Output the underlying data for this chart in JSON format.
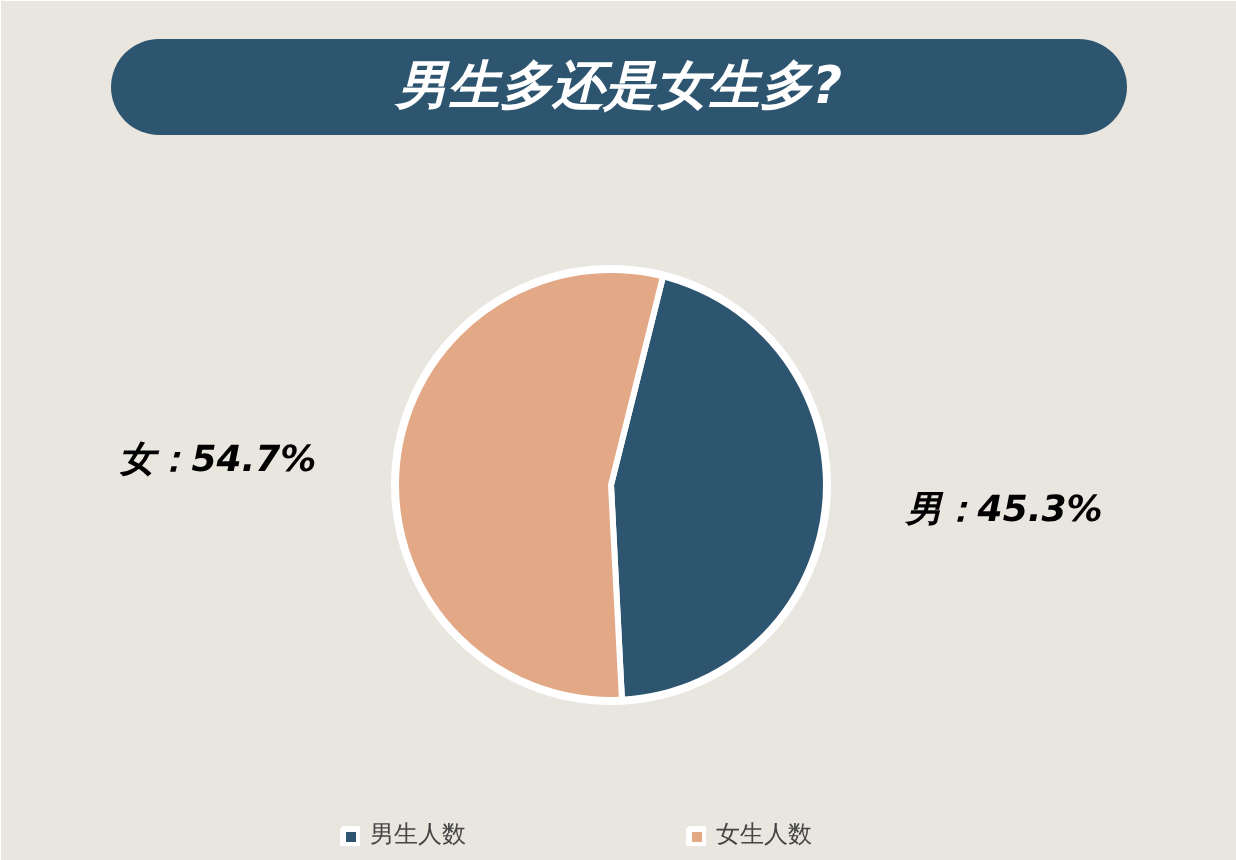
{
  "chart_data": {
    "type": "pie",
    "title": "男生多还是女生多?",
    "categories": [
      "男生人数",
      "女生人数"
    ],
    "values": [
      45.3,
      54.7
    ],
    "colors": [
      "#2e5570",
      "#e3a886"
    ],
    "value_labels": [
      "男：45.3%",
      "女：54.7%"
    ],
    "legend": "bottom"
  }
}
